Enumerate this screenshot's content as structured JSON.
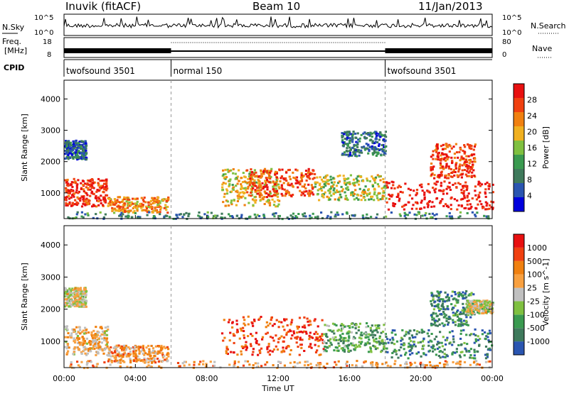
{
  "header": {
    "station": "Inuvik (fitACF)",
    "beam": "Beam 10",
    "date": "11/Jan/2013"
  },
  "status_panels": {
    "nsky_label": "N.Sky",
    "nsearch_label": "N.Search",
    "noise_ticks": [
      "10^5",
      "10^0"
    ],
    "noise_ticks_right": [
      "10^5",
      "10^0"
    ],
    "freq_label_1": "Freq.",
    "freq_label_2": "[MHz]",
    "freq_ticks": [
      "18",
      "8"
    ],
    "nave_ticks": [
      "80",
      "0"
    ],
    "nave_label": "Nave",
    "cpid_label": "CPID",
    "cpid_segments": [
      {
        "label": "twofsound 3501",
        "start_hour": 0,
        "end_hour": 6
      },
      {
        "label": "normal 150",
        "start_hour": 6,
        "end_hour": 18
      },
      {
        "label": "twofsound 3501",
        "start_hour": 18,
        "end_hour": 24
      }
    ]
  },
  "colors": {
    "power_scale": [
      "#0000dd",
      "#2a55b0",
      "#3f7a5c",
      "#3a9a50",
      "#7fc040",
      "#f0b020",
      "#f08010",
      "#f04010",
      "#e81010"
    ],
    "velocity_scale": [
      "#e81010",
      "#f04010",
      "#f08010",
      "#f8a040",
      "#c0c0c0",
      "#7fc040",
      "#3a9a50",
      "#3f7a5c",
      "#2a55b0"
    ]
  },
  "chart_data": [
    {
      "type": "heatmap",
      "panel": "power",
      "ylabel": "Slant Range [km]",
      "xlabel": "Time UT",
      "x_ticks": [
        "00:00",
        "04:00",
        "08:00",
        "12:00",
        "16:00",
        "20:00",
        "00:00"
      ],
      "y_ticks": [
        "1000",
        "2000",
        "3000",
        "4000"
      ],
      "xlim_hours": [
        0,
        24
      ],
      "ylim_km": [
        180,
        4600
      ],
      "colorbar_label": "Power [dB]",
      "colorbar_ticks": [
        "4",
        "8",
        "12",
        "16",
        "20",
        "24",
        "28"
      ],
      "regions": [
        {
          "t0": 0.0,
          "t1": 2.4,
          "r0": 600,
          "r1": 1500,
          "level": 0.9
        },
        {
          "t0": 2.4,
          "t1": 5.8,
          "r0": 400,
          "r1": 900,
          "level": 0.7
        },
        {
          "t0": 0.0,
          "t1": 1.2,
          "r0": 2100,
          "r1": 2700,
          "level": 0.2
        },
        {
          "t0": 8.8,
          "t1": 12.0,
          "r0": 600,
          "r1": 1800,
          "level": 0.6
        },
        {
          "t0": 10.2,
          "t1": 14.0,
          "r0": 900,
          "r1": 1800,
          "level": 0.85
        },
        {
          "t0": 14.0,
          "t1": 18.0,
          "r0": 800,
          "r1": 1600,
          "level": 0.55
        },
        {
          "t0": 18.0,
          "t1": 24.0,
          "r0": 500,
          "r1": 1400,
          "level": 0.95
        },
        {
          "t0": 20.5,
          "t1": 23.0,
          "r0": 1500,
          "r1": 2600,
          "level": 0.85
        },
        {
          "t0": 15.5,
          "t1": 18.0,
          "r0": 2200,
          "r1": 3000,
          "level": 0.25
        },
        {
          "t0": 0.0,
          "t1": 24.0,
          "r0": 200,
          "r1": 420,
          "level": 0.3
        }
      ]
    },
    {
      "type": "heatmap",
      "panel": "velocity",
      "ylabel": "Slant Range [km]",
      "xlabel": "Time UT",
      "x_ticks": [
        "00:00",
        "04:00",
        "08:00",
        "12:00",
        "16:00",
        "20:00",
        "00:00"
      ],
      "y_ticks": [
        "1000",
        "2000",
        "3000",
        "4000"
      ],
      "xlim_hours": [
        0,
        24
      ],
      "ylim_km": [
        180,
        4600
      ],
      "colorbar_label": "Velocity [m s^-1]",
      "colorbar_ticks": [
        "1000",
        "500",
        "100",
        "25",
        "-25",
        "-100",
        "-500",
        "-1000"
      ],
      "regions": [
        {
          "t0": 0.0,
          "t1": 2.4,
          "r0": 600,
          "r1": 1500,
          "level": 0.4
        },
        {
          "t0": 2.4,
          "t1": 5.8,
          "r0": 400,
          "r1": 900,
          "level": 0.35
        },
        {
          "t0": 0.0,
          "t1": 1.2,
          "r0": 2100,
          "r1": 2700,
          "level": 0.5
        },
        {
          "t0": 8.8,
          "t1": 14.5,
          "r0": 600,
          "r1": 1800,
          "level": 0.15
        },
        {
          "t0": 14.5,
          "t1": 18.0,
          "r0": 700,
          "r1": 1600,
          "level": 0.7
        },
        {
          "t0": 18.0,
          "t1": 24.0,
          "r0": 500,
          "r1": 1400,
          "level": 0.8
        },
        {
          "t0": 20.5,
          "t1": 23.0,
          "r0": 1500,
          "r1": 2600,
          "level": 0.8
        },
        {
          "t0": 22.5,
          "t1": 24.0,
          "r0": 1900,
          "r1": 2300,
          "level": 0.5
        },
        {
          "t0": 0.0,
          "t1": 24.0,
          "r0": 200,
          "r1": 420,
          "level": 0.35
        }
      ]
    }
  ]
}
